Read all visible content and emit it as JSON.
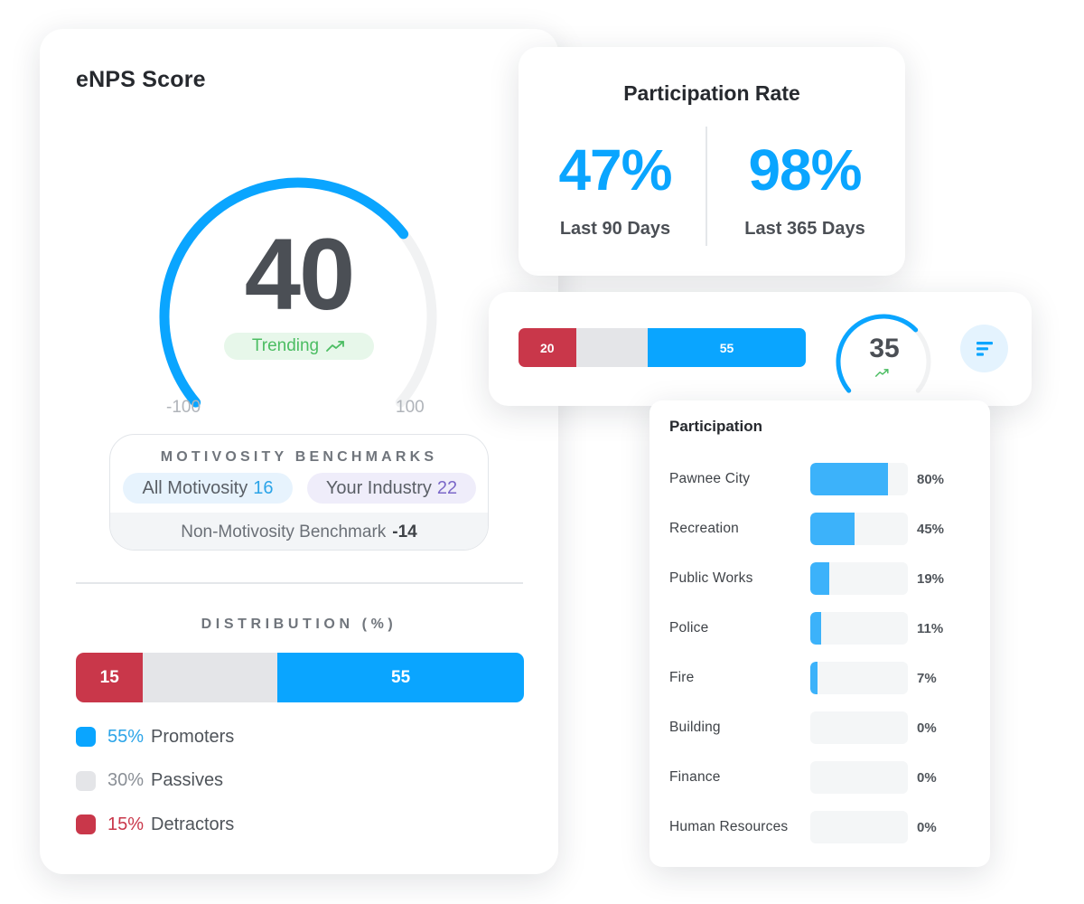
{
  "enps": {
    "title": "eNPS Score",
    "score": 40,
    "score_text": "40",
    "gauge_min": "-100",
    "gauge_max": "100",
    "trend_label": "Trending",
    "trend_color": "#4bbd62",
    "benchmarks": {
      "title": "MOTIVOSITY BENCHMARKS",
      "all_label": "All Motivosity",
      "all_value": "16",
      "industry_label": "Your Industry",
      "industry_value": "22",
      "non_label": "Non-Motivosity Benchmark",
      "non_value": "-14"
    },
    "distribution": {
      "title": "DISTRIBUTION (%)",
      "detractors_value": "15",
      "passives_value": 30,
      "promoters_value": "55",
      "legend": [
        {
          "pct": "55%",
          "label": "Promoters",
          "color": "#0aa5ff"
        },
        {
          "pct": "30%",
          "label": "Passives",
          "color": "#e4e5e8"
        },
        {
          "pct": "15%",
          "label": "Detractors",
          "color": "#c9374a"
        }
      ]
    }
  },
  "participation_rate": {
    "title": "Participation Rate",
    "left_value": "47%",
    "left_label": "Last 90 Days",
    "right_value": "98%",
    "right_label": "Last 365 Days"
  },
  "summary": {
    "detractors_value": "20",
    "passives_value": 25,
    "promoters_value": "55",
    "score": 35,
    "score_text": "35",
    "filter_icon": "filter-bars-icon"
  },
  "participation": {
    "title": "Participation",
    "rows": [
      {
        "name": "Pawnee City",
        "pct": "80%",
        "value": 0.8
      },
      {
        "name": "Recreation",
        "pct": "45%",
        "value": 0.45
      },
      {
        "name": "Public Works",
        "pct": "19%",
        "value": 0.19
      },
      {
        "name": "Police",
        "pct": "11%",
        "value": 0.11
      },
      {
        "name": "Fire",
        "pct": "7%",
        "value": 0.07
      },
      {
        "name": "Building",
        "pct": "0%",
        "value": 0
      },
      {
        "name": "Finance",
        "pct": "0%",
        "value": 0
      },
      {
        "name": "Human Resources",
        "pct": "0%",
        "value": 0
      }
    ]
  },
  "colors": {
    "accent_blue": "#0aa5ff",
    "detractor_red": "#c9374a",
    "passive_gray": "#e4e5e8",
    "trend_green": "#4bbd62"
  }
}
